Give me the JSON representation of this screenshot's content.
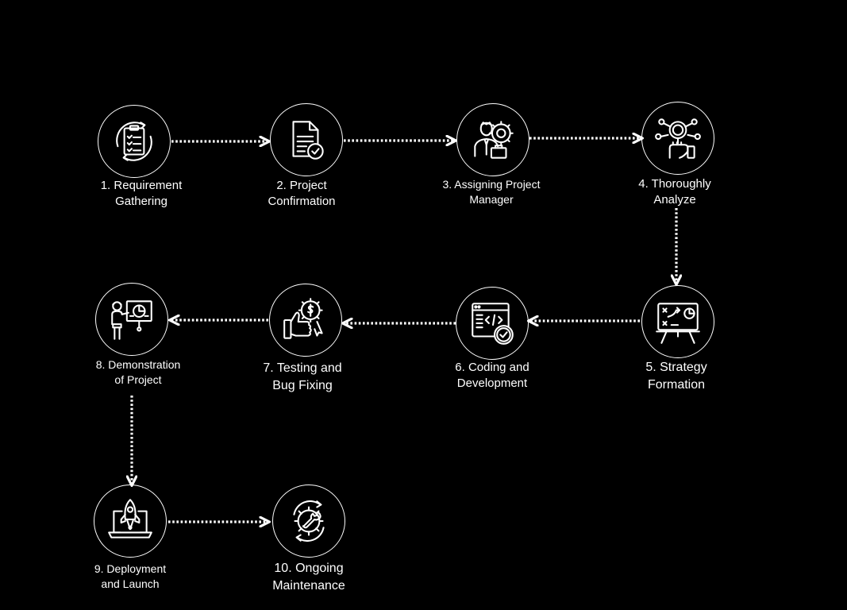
{
  "colors": {
    "background": "#000000",
    "foreground": "#ffffff"
  },
  "steps": [
    {
      "icon": "clipboard-checklist-icon",
      "line1": "1. Requirement",
      "line2": "Gathering"
    },
    {
      "icon": "document-check-icon",
      "line1": "2. Project",
      "line2": "Confirmation"
    },
    {
      "icon": "manager-gear-icon",
      "line1": "3. Assigning Project",
      "line2": "Manager"
    },
    {
      "icon": "magnifier-analysis-icon",
      "line1": "4. Thoroughly",
      "line2": "Analyze"
    },
    {
      "icon": "strategy-board-icon",
      "line1": "5. Strategy",
      "line2": "Formation"
    },
    {
      "icon": "code-window-check-icon",
      "line1": "6. Coding and",
      "line2": "Development"
    },
    {
      "icon": "thumbs-up-badge-icon",
      "line1": "7. Testing and",
      "line2": "Bug Fixing"
    },
    {
      "icon": "presenter-board-icon",
      "line1": "8. Demonstration",
      "line2": "of Project"
    },
    {
      "icon": "rocket-laptop-icon",
      "line1": "9. Deployment",
      "line2": "and Launch"
    },
    {
      "icon": "wrench-gear-cycle-icon",
      "line1": "10. Ongoing",
      "line2": "Maintenance"
    }
  ]
}
